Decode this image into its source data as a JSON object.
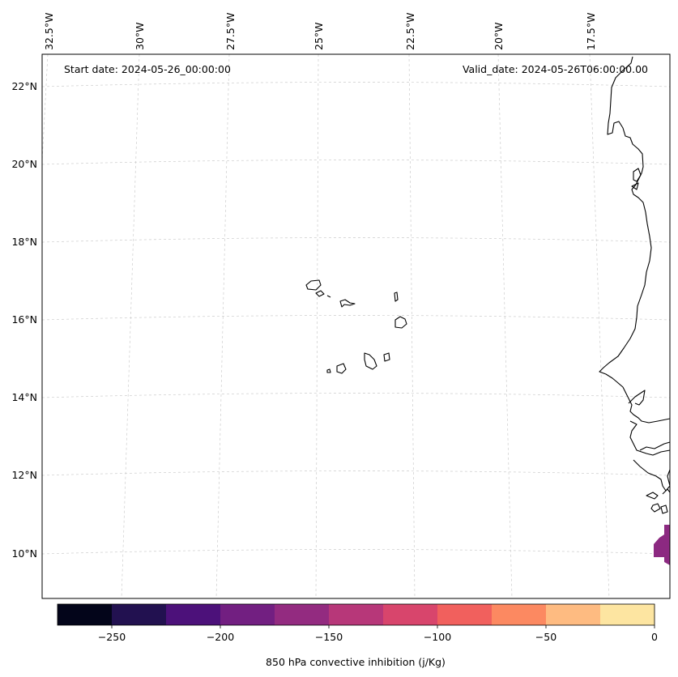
{
  "map": {
    "start_date": "Start date: 2024-05-26_00:00:00",
    "valid_date": "Valid_date: 2024-05-26T06:00:00.00",
    "lon_labels": [
      "32.5°W",
      "30°W",
      "27.5°W",
      "25°W",
      "22.5°W",
      "20°W",
      "17.5°W"
    ],
    "lon_values": [
      -32.5,
      -30,
      -27.5,
      -25,
      -22.5,
      -20,
      -17.5
    ],
    "lat_labels": [
      "22°N",
      "20°N",
      "18°N",
      "16°N",
      "14°N",
      "12°N",
      "10°N"
    ],
    "lat_values": [
      22,
      20,
      18,
      16,
      14,
      12,
      10
    ],
    "gridlines": true,
    "coastline_color": "#000000",
    "field_color": "#8c2981"
  },
  "colorbar": {
    "label": "850 hPa convective inhibition (j/Kg)",
    "range": [
      -275,
      0
    ],
    "tick_values": [
      -250,
      -200,
      -150,
      -100,
      -50,
      0
    ],
    "tick_labels": [
      "−250",
      "−200",
      "−150",
      "−100",
      "−50",
      "0"
    ],
    "colors": [
      "#03051a",
      "#221150",
      "#4c117a",
      "#721f81",
      "#932b80",
      "#b73779",
      "#d8456c",
      "#f1605d",
      "#fc8961",
      "#febb81",
      "#fde5a1"
    ]
  }
}
